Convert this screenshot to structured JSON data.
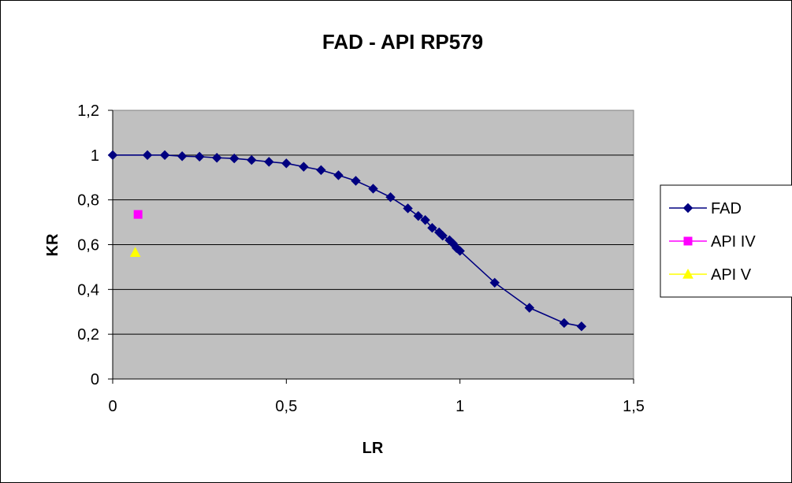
{
  "chart_data": {
    "type": "scatter",
    "title": "FAD - API RP579",
    "xlabel": "LR",
    "ylabel": "KR",
    "xlim": [
      0,
      1.5
    ],
    "ylim": [
      0,
      1.2
    ],
    "x_ticks": [
      "0",
      "0,5",
      "1",
      "1,5"
    ],
    "x_tick_values": [
      0,
      0.5,
      1,
      1.5
    ],
    "y_ticks": [
      "0",
      "0,2",
      "0,4",
      "0,6",
      "0,8",
      "1",
      "1,2"
    ],
    "y_tick_values": [
      0,
      0.2,
      0.4,
      0.6,
      0.8,
      1,
      1.2
    ],
    "grid": "horizontal",
    "plot_background": "#c0c0c0",
    "legend_position": "right",
    "series": [
      {
        "name": "FAD",
        "marker": "diamond",
        "color": "#000080",
        "line": true,
        "x": [
          0,
          0.1,
          0.15,
          0.2,
          0.25,
          0.3,
          0.35,
          0.4,
          0.45,
          0.5,
          0.55,
          0.6,
          0.65,
          0.7,
          0.75,
          0.8,
          0.85,
          0.88,
          0.9,
          0.92,
          0.94,
          0.95,
          0.97,
          0.98,
          0.99,
          1.0,
          1.1,
          1.2,
          1.3,
          1.35
        ],
        "y": [
          1.0,
          1.0,
          1.0,
          0.995,
          0.993,
          0.988,
          0.985,
          0.978,
          0.97,
          0.963,
          0.948,
          0.933,
          0.91,
          0.885,
          0.85,
          0.812,
          0.762,
          0.728,
          0.71,
          0.675,
          0.655,
          0.64,
          0.62,
          0.605,
          0.585,
          0.572,
          0.43,
          0.318,
          0.25,
          0.235
        ]
      },
      {
        "name": "API IV",
        "marker": "square",
        "color": "#ff00ff",
        "line": false,
        "x": [
          0.073
        ],
        "y": [
          0.735
        ]
      },
      {
        "name": "API V",
        "marker": "triangle",
        "color": "#ffff00",
        "line": false,
        "x": [
          0.065
        ],
        "y": [
          0.565
        ]
      }
    ]
  }
}
